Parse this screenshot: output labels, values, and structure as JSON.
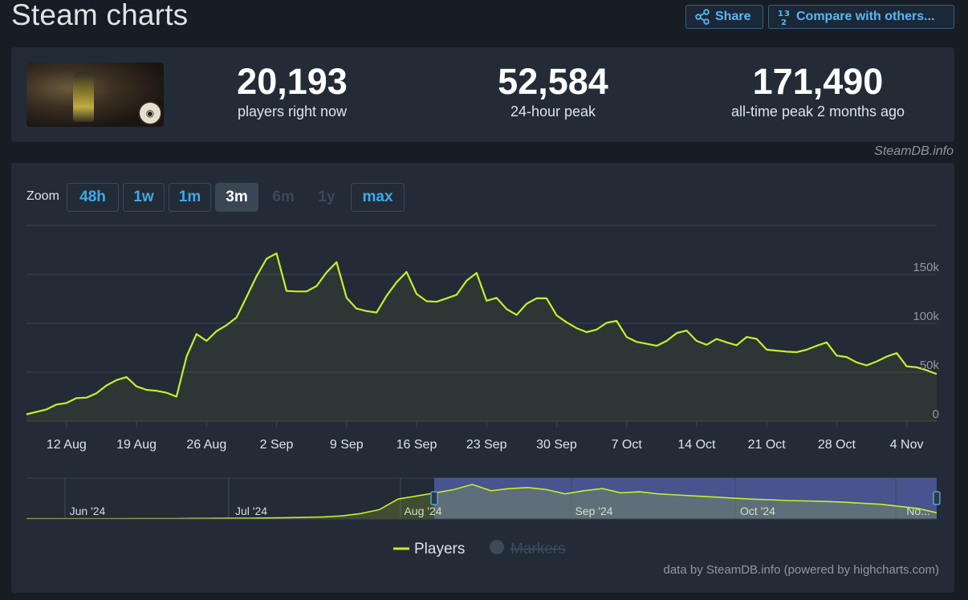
{
  "header": {
    "title": "Steam charts",
    "share_label": "Share",
    "compare_label": "Compare with others..."
  },
  "stats": {
    "current": {
      "value": "20,193",
      "label": "players right now"
    },
    "peak24": {
      "value": "52,584",
      "label": "24-hour peak"
    },
    "alltime": {
      "value": "171,490",
      "label": "all-time peak 2 months ago"
    }
  },
  "attribution": "SteamDB.info",
  "zoom": {
    "label": "Zoom",
    "buttons": [
      "48h",
      "1w",
      "1m",
      "3m",
      "6m",
      "1y",
      "max"
    ],
    "active": "3m",
    "disabled": [
      "6m",
      "1y"
    ]
  },
  "footer": "data by SteamDB.info (powered by highcharts.com)",
  "chart_data": {
    "type": "line",
    "xlabel": "",
    "ylabel": "",
    "ylim": [
      0,
      200000
    ],
    "y_ticks": [
      "0",
      "50k",
      "100k",
      "150k"
    ],
    "x_start": "2024-08-08",
    "x_end": "2024-11-07",
    "x_ticks": [
      "12 Aug",
      "19 Aug",
      "26 Aug",
      "2 Sep",
      "9 Sep",
      "16 Sep",
      "23 Sep",
      "30 Sep",
      "7 Oct",
      "14 Oct",
      "21 Oct",
      "28 Oct",
      "4 Nov"
    ],
    "grid": true,
    "line_color": "#c6ef29",
    "legend": {
      "items": [
        "Players",
        "Markers"
      ],
      "placement": "bottom"
    },
    "series": [
      {
        "name": "Players",
        "x": [
          "2024-08-08",
          "2024-08-09",
          "2024-08-10",
          "2024-08-11",
          "2024-08-12",
          "2024-08-13",
          "2024-08-14",
          "2024-08-15",
          "2024-08-16",
          "2024-08-17",
          "2024-08-18",
          "2024-08-19",
          "2024-08-20",
          "2024-08-21",
          "2024-08-22",
          "2024-08-23",
          "2024-08-24",
          "2024-08-25",
          "2024-08-26",
          "2024-08-27",
          "2024-08-28",
          "2024-08-29",
          "2024-08-30",
          "2024-08-31",
          "2024-09-01",
          "2024-09-02",
          "2024-09-03",
          "2024-09-04",
          "2024-09-05",
          "2024-09-06",
          "2024-09-07",
          "2024-09-08",
          "2024-09-09",
          "2024-09-10",
          "2024-09-11",
          "2024-09-12",
          "2024-09-13",
          "2024-09-14",
          "2024-09-15",
          "2024-09-16",
          "2024-09-17",
          "2024-09-18",
          "2024-09-19",
          "2024-09-20",
          "2024-09-21",
          "2024-09-22",
          "2024-09-23",
          "2024-09-24",
          "2024-09-25",
          "2024-09-26",
          "2024-09-27",
          "2024-09-28",
          "2024-09-29",
          "2024-09-30",
          "2024-10-01",
          "2024-10-02",
          "2024-10-03",
          "2024-10-04",
          "2024-10-05",
          "2024-10-06",
          "2024-10-07",
          "2024-10-08",
          "2024-10-09",
          "2024-10-10",
          "2024-10-11",
          "2024-10-12",
          "2024-10-13",
          "2024-10-14",
          "2024-10-15",
          "2024-10-16",
          "2024-10-17",
          "2024-10-18",
          "2024-10-19",
          "2024-10-20",
          "2024-10-21",
          "2024-10-22",
          "2024-10-23",
          "2024-10-24",
          "2024-10-25",
          "2024-10-26",
          "2024-10-27",
          "2024-10-28",
          "2024-10-29",
          "2024-10-30",
          "2024-10-31",
          "2024-11-01",
          "2024-11-02",
          "2024-11-03",
          "2024-11-04",
          "2024-11-05",
          "2024-11-06",
          "2024-11-07"
        ],
        "values": [
          7000,
          9500,
          12000,
          17000,
          18500,
          23500,
          24000,
          28500,
          36500,
          42000,
          45000,
          35500,
          32000,
          31000,
          29000,
          25000,
          66000,
          89000,
          82000,
          92000,
          98000,
          106000,
          127000,
          148000,
          166000,
          171500,
          133000,
          132500,
          132500,
          138000,
          152000,
          162500,
          126000,
          115000,
          112500,
          111000,
          128000,
          142000,
          152500,
          130000,
          122500,
          122000,
          125500,
          129000,
          143500,
          151500,
          123000,
          126000,
          114500,
          108500,
          120000,
          125500,
          125500,
          108000,
          101000,
          95000,
          91000,
          93500,
          100500,
          102500,
          86000,
          81000,
          79000,
          77000,
          82000,
          90000,
          92500,
          82000,
          78000,
          84000,
          80500,
          77500,
          86000,
          84000,
          73000,
          72000,
          71000,
          70500,
          73000,
          77000,
          80500,
          67000,
          65500,
          60000,
          57000,
          61000,
          66000,
          69500,
          56000,
          55000,
          52000,
          48000
        ]
      }
    ]
  },
  "navigator": {
    "labels": [
      "Jun '24",
      "Jul '24",
      "Aug '24",
      "Sep '24",
      "Oct '24",
      "No..."
    ],
    "values": [
      1000,
      1000,
      1000,
      1200,
      1200,
      1300,
      1500,
      1700,
      2000,
      2500,
      3200,
      3600,
      4000,
      5000,
      6000,
      8000,
      10000,
      15000,
      26000,
      45000,
      95000,
      110000,
      125000,
      140000,
      165000,
      135000,
      145000,
      150000,
      140000,
      120000,
      135000,
      145000,
      125000,
      130000,
      120000,
      115000,
      110000,
      105000,
      100000,
      95000,
      92000,
      88000,
      86000,
      84000,
      80000,
      75000,
      70000,
      60000,
      50000,
      30000
    ]
  }
}
